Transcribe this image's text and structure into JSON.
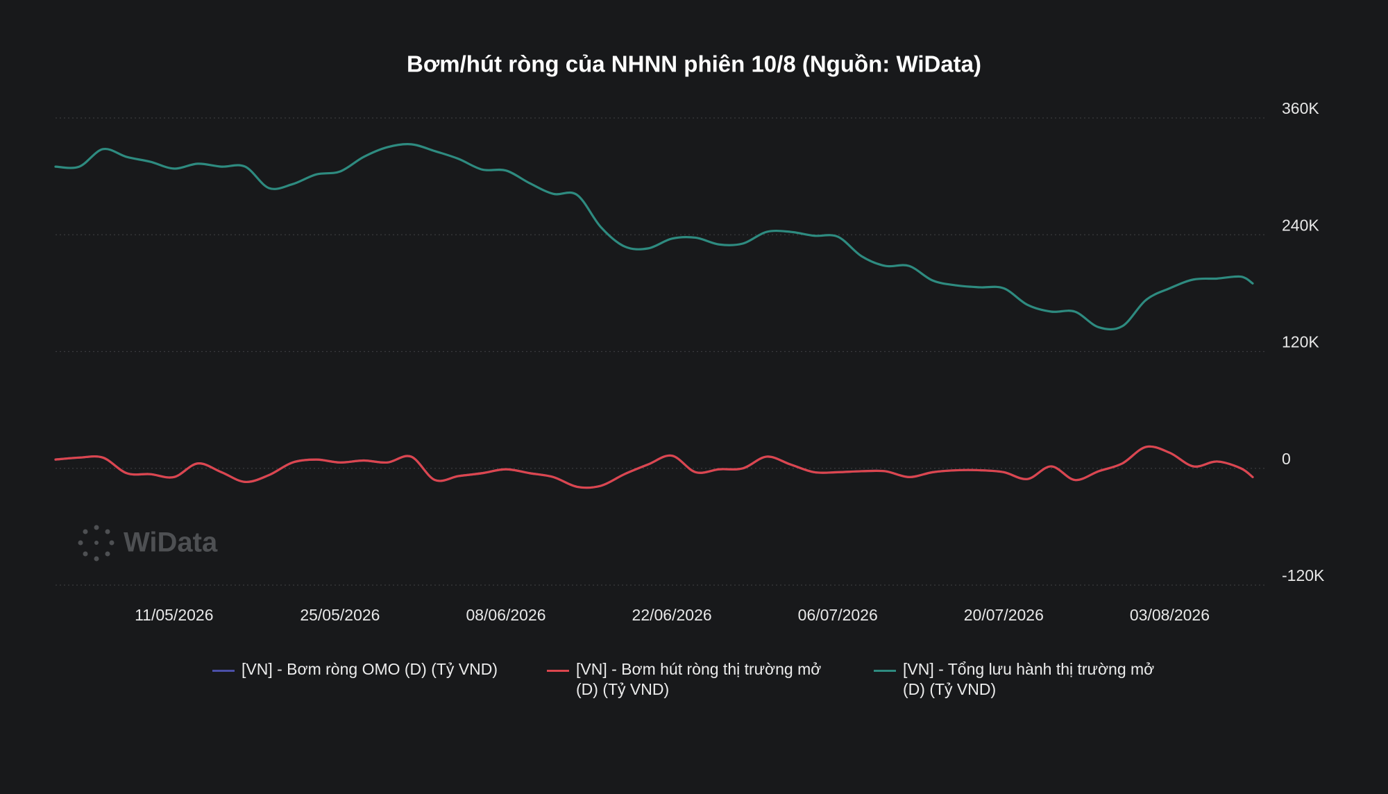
{
  "chart_data": {
    "type": "line",
    "title": "Bơm/hút ròng của NHNN phiên 10/8 (Nguồn: WiData)",
    "watermark": "WiData",
    "x": [
      "01/05/2026",
      "03/05/2026",
      "05/05/2026",
      "07/05/2026",
      "09/05/2026",
      "11/05/2026",
      "13/05/2026",
      "15/05/2026",
      "17/05/2026",
      "19/05/2026",
      "21/05/2026",
      "23/05/2026",
      "25/05/2026",
      "27/05/2026",
      "29/05/2026",
      "31/05/2026",
      "02/06/2026",
      "04/06/2026",
      "06/06/2026",
      "08/06/2026",
      "10/06/2026",
      "12/06/2026",
      "14/06/2026",
      "16/06/2026",
      "18/06/2026",
      "20/06/2026",
      "22/06/2026",
      "24/06/2026",
      "26/06/2026",
      "28/06/2026",
      "30/06/2026",
      "02/07/2026",
      "04/07/2026",
      "06/07/2026",
      "08/07/2026",
      "10/07/2026",
      "12/07/2026",
      "14/07/2026",
      "16/07/2026",
      "18/07/2026",
      "20/07/2026",
      "22/07/2026",
      "24/07/2026",
      "26/07/2026",
      "28/07/2026",
      "30/07/2026",
      "01/08/2026",
      "03/08/2026",
      "05/08/2026",
      "07/08/2026",
      "09/08/2026",
      "10/08/2026"
    ],
    "xlim": [
      "01/05/2026",
      "10/08/2026"
    ],
    "xticks": [
      "11/05/2026",
      "25/05/2026",
      "08/06/2026",
      "22/06/2026",
      "06/07/2026",
      "20/07/2026",
      "03/08/2026"
    ],
    "ylim": [
      -120000,
      360000
    ],
    "yticks": [
      {
        "value": 360000,
        "label": "360K"
      },
      {
        "value": 240000,
        "label": "240K"
      },
      {
        "value": 120000,
        "label": "120K"
      },
      0,
      {
        "value": -120000,
        "label": "-120K"
      }
    ],
    "grid": true,
    "legend": "bottom",
    "series": [
      {
        "name": "[VN] - Bơm ròng OMO (D) (Tỷ VND)",
        "color": "#4b50a8",
        "values": [
          9000,
          11000,
          11000,
          -5000,
          -6000,
          -9000,
          5000,
          -4000,
          -14000,
          -7000,
          6000,
          9000,
          6000,
          8000,
          6000,
          12000,
          -12000,
          -8000,
          -5000,
          -1000,
          -5000,
          -9000,
          -19000,
          -18000,
          -6000,
          4000,
          13000,
          -4000,
          -1000,
          0,
          12000,
          4000,
          -4000,
          -4000,
          -3000,
          -3000,
          -9000,
          -4000,
          -2000,
          -2000,
          -4000,
          -11000,
          2000,
          -12000,
          -3000,
          5000,
          22000,
          16000,
          2000,
          7000,
          0,
          -9000
        ]
      },
      {
        "name": "[VN] - Bơm hút ròng thị trường mở (D) (Tỷ VND)",
        "color": "#dc464e",
        "values": [
          9000,
          11000,
          11000,
          -5000,
          -6000,
          -9000,
          5000,
          -4000,
          -14000,
          -7000,
          6000,
          9000,
          6000,
          8000,
          6000,
          12000,
          -12000,
          -8000,
          -5000,
          -1000,
          -5000,
          -9000,
          -19000,
          -18000,
          -6000,
          4000,
          13000,
          -4000,
          -1000,
          0,
          12000,
          4000,
          -4000,
          -4000,
          -3000,
          -3000,
          -9000,
          -4000,
          -2000,
          -2000,
          -4000,
          -11000,
          2000,
          -12000,
          -3000,
          5000,
          22000,
          16000,
          2000,
          7000,
          0,
          -9000
        ]
      },
      {
        "name": "[VN] - Tổng lưu hành thị trường mở (D) (Tỷ VND)",
        "color": "#2e8b80",
        "values": [
          310000,
          310000,
          328000,
          320000,
          315000,
          308000,
          313000,
          310000,
          310000,
          288000,
          292000,
          302000,
          305000,
          320000,
          330000,
          333000,
          326000,
          318000,
          307000,
          306000,
          293000,
          282000,
          281000,
          248000,
          228000,
          226000,
          236000,
          237000,
          230000,
          231000,
          243000,
          243000,
          239000,
          238000,
          218000,
          208000,
          208000,
          193000,
          188000,
          186000,
          185000,
          168000,
          161000,
          161000,
          145000,
          146000,
          173000,
          185000,
          194000,
          195000,
          197000,
          190000
        ]
      }
    ]
  }
}
